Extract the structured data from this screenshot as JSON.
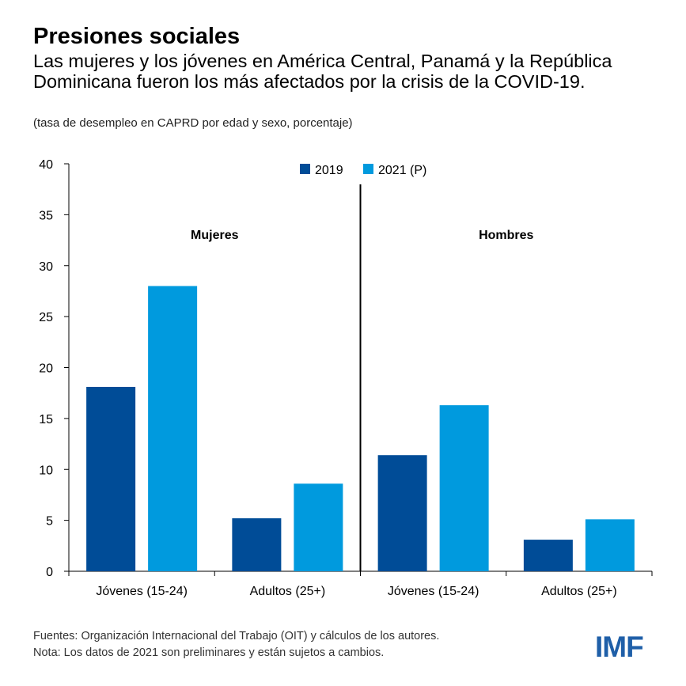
{
  "header": {
    "title": "Presiones sociales",
    "subtitle": "Las mujeres y los jóvenes en América Central, Panamá y la República Dominicana fueron los más afectados por la crisis de la COVID-19.",
    "note": "(tasa de desempleo en CAPRD por edad y sexo, porcentaje)"
  },
  "footer": {
    "source": "Fuentes: Organización Internacional del Trabajo (OIT) y cálculos de los autores.",
    "note": "Nota: Los datos de 2021 son preliminares y están sujetos a cambios."
  },
  "logo": {
    "text": "IMF",
    "color": "#1f5fa8"
  },
  "colors": {
    "s2019": "#004c97",
    "s2021": "#009ade"
  },
  "chart_data": {
    "type": "bar",
    "title": "",
    "ylim": [
      0,
      40
    ],
    "yticks": [
      0,
      5,
      10,
      15,
      20,
      25,
      30,
      35,
      40
    ],
    "groups": [
      {
        "label": "Mujeres",
        "categories": [
          "Jóvenes (15-24)",
          "Adultos (25+)"
        ]
      },
      {
        "label": "Hombres",
        "categories": [
          "Jóvenes (15-24)",
          "Adultos (25+)"
        ]
      }
    ],
    "categories": [
      "Jóvenes (15-24)",
      "Adultos (25+)",
      "Jóvenes (15-24)",
      "Adultos (25+)"
    ],
    "series": [
      {
        "name": "2019",
        "values": [
          18.1,
          5.2,
          11.4,
          3.1
        ]
      },
      {
        "name": "2021 (P)",
        "values": [
          28.0,
          8.6,
          16.3,
          5.1
        ]
      }
    ],
    "legend_position": "top",
    "grid": false
  }
}
